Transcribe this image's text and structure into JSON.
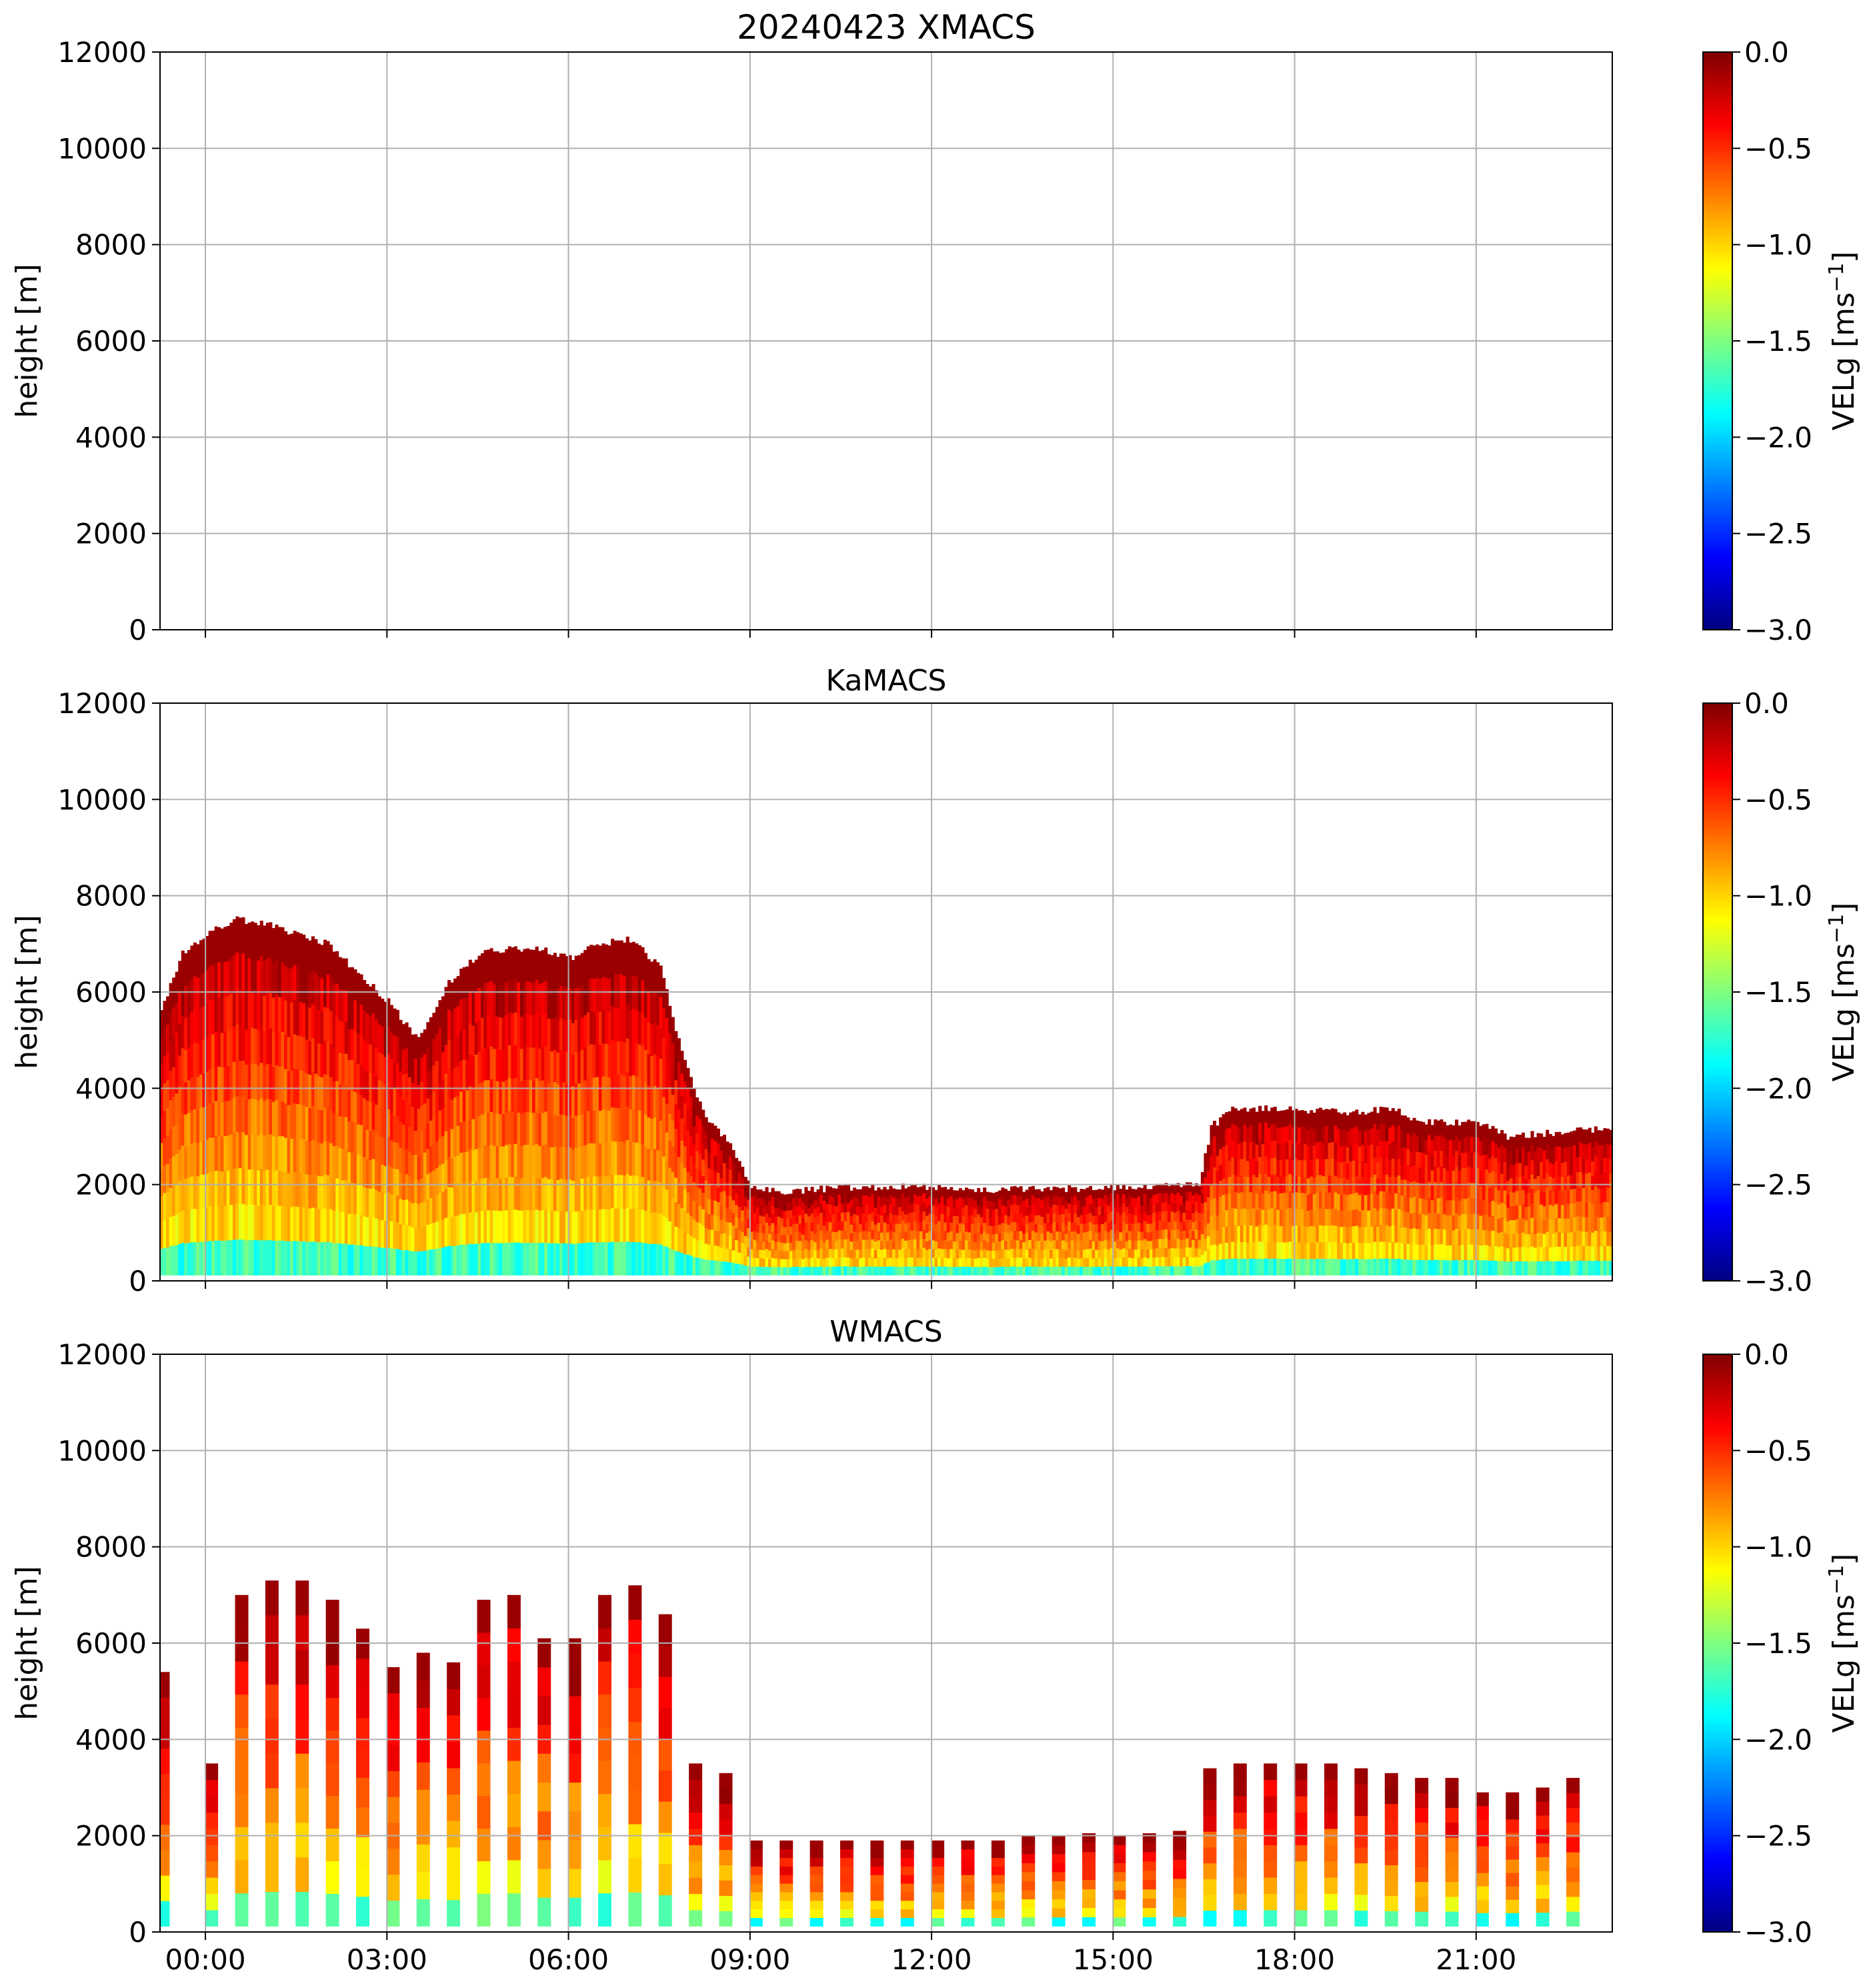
{
  "figure": {
    "title": "20240423 XMACS",
    "xticks": [
      "00:00",
      "03:00",
      "06:00",
      "09:00",
      "12:00",
      "15:00",
      "18:00",
      "21:00"
    ]
  },
  "colorbar": {
    "label_main": "VELg [ms",
    "label_sup": "−1",
    "label_end": "]",
    "range": [
      -3.0,
      0.0
    ],
    "ticks": [
      "0.0",
      "−0.5",
      "−1.0",
      "−1.5",
      "−2.0",
      "−2.5",
      "−3.0"
    ],
    "colormap": "jet",
    "stops": [
      "#00007f",
      "#0000ff",
      "#007fff",
      "#00ffff",
      "#7fff7f",
      "#ffff00",
      "#ff7f00",
      "#ff0000",
      "#7f0000"
    ]
  },
  "chart_data": [
    {
      "type": "heatmap",
      "title": "20240423 XMACS",
      "ylabel": "height [m]",
      "xlabel": "",
      "x_range_hours": [
        -0.75,
        23.25
      ],
      "ylim": [
        0,
        12000
      ],
      "yticks": [
        "0",
        "2000",
        "4000",
        "6000",
        "8000",
        "10000",
        "12000"
      ],
      "grid": true,
      "cloud_top_m": []
    },
    {
      "type": "heatmap",
      "title": "KaMACS",
      "ylabel": "height [m]",
      "xlabel": "",
      "x_range_hours": [
        -0.75,
        23.25
      ],
      "ylim": [
        0,
        12000
      ],
      "yticks": [
        "0",
        "2000",
        "4000",
        "6000",
        "8000",
        "10000",
        "12000"
      ],
      "grid": true,
      "cloud_top_m": [
        {
          "h": -0.75,
          "top": 5600
        },
        {
          "h": -0.4,
          "top": 6800
        },
        {
          "h": 0.0,
          "top": 7200
        },
        {
          "h": 0.5,
          "top": 7500
        },
        {
          "h": 1.0,
          "top": 7400
        },
        {
          "h": 1.5,
          "top": 7200
        },
        {
          "h": 2.0,
          "top": 7000
        },
        {
          "h": 2.5,
          "top": 6400
        },
        {
          "h": 3.0,
          "top": 5800
        },
        {
          "h": 3.5,
          "top": 5000
        },
        {
          "h": 4.0,
          "top": 6200
        },
        {
          "h": 4.5,
          "top": 6800
        },
        {
          "h": 5.0,
          "top": 6900
        },
        {
          "h": 5.5,
          "top": 6900
        },
        {
          "h": 6.0,
          "top": 6700
        },
        {
          "h": 6.5,
          "top": 7000
        },
        {
          "h": 7.0,
          "top": 7100
        },
        {
          "h": 7.5,
          "top": 6500
        },
        {
          "h": 7.8,
          "top": 5000
        },
        {
          "h": 8.2,
          "top": 3500
        },
        {
          "h": 8.6,
          "top": 2900
        },
        {
          "h": 9.0,
          "top": 2000
        },
        {
          "h": 9.5,
          "top": 1800
        },
        {
          "h": 10.0,
          "top": 1900
        },
        {
          "h": 11.0,
          "top": 1950
        },
        {
          "h": 12.0,
          "top": 1950
        },
        {
          "h": 13.0,
          "top": 1900
        },
        {
          "h": 14.0,
          "top": 1900
        },
        {
          "h": 15.0,
          "top": 1950
        },
        {
          "h": 16.0,
          "top": 2000
        },
        {
          "h": 16.4,
          "top": 2000
        },
        {
          "h": 16.6,
          "top": 3200
        },
        {
          "h": 17.0,
          "top": 3600
        },
        {
          "h": 18.0,
          "top": 3550
        },
        {
          "h": 19.0,
          "top": 3500
        },
        {
          "h": 19.6,
          "top": 3600
        },
        {
          "h": 20.0,
          "top": 3300
        },
        {
          "h": 21.0,
          "top": 3300
        },
        {
          "h": 21.5,
          "top": 3000
        },
        {
          "h": 22.5,
          "top": 3100
        },
        {
          "h": 23.25,
          "top": 3200
        }
      ]
    },
    {
      "type": "heatmap",
      "title": "WMACS",
      "ylabel": "height [m]",
      "xlabel": "",
      "x_range_hours": [
        -0.75,
        23.25
      ],
      "ylim": [
        0,
        12000
      ],
      "yticks": [
        "0",
        "2000",
        "4000",
        "6000",
        "8000",
        "10000",
        "12000"
      ],
      "grid": true,
      "column_width_hours": 0.22,
      "columns": [
        {
          "h": -0.7,
          "top": 5400
        },
        {
          "h": 0.1,
          "top": 3500
        },
        {
          "h": 0.6,
          "top": 7000
        },
        {
          "h": 1.1,
          "top": 7300
        },
        {
          "h": 1.6,
          "top": 7300
        },
        {
          "h": 2.1,
          "top": 6900
        },
        {
          "h": 2.6,
          "top": 6300
        },
        {
          "h": 3.1,
          "top": 5500
        },
        {
          "h": 3.6,
          "top": 5800
        },
        {
          "h": 4.1,
          "top": 5600
        },
        {
          "h": 4.6,
          "top": 6900
        },
        {
          "h": 5.1,
          "top": 7000
        },
        {
          "h": 5.6,
          "top": 6100
        },
        {
          "h": 6.1,
          "top": 6100
        },
        {
          "h": 6.6,
          "top": 7000
        },
        {
          "h": 7.1,
          "top": 7200
        },
        {
          "h": 7.6,
          "top": 6600
        },
        {
          "h": 8.1,
          "top": 3500
        },
        {
          "h": 8.6,
          "top": 3300
        },
        {
          "h": 9.1,
          "top": 1900
        },
        {
          "h": 9.6,
          "top": 1900
        },
        {
          "h": 10.1,
          "top": 1900
        },
        {
          "h": 10.6,
          "top": 1900
        },
        {
          "h": 11.1,
          "top": 1900
        },
        {
          "h": 11.6,
          "top": 1900
        },
        {
          "h": 12.1,
          "top": 1900
        },
        {
          "h": 12.6,
          "top": 1900
        },
        {
          "h": 13.1,
          "top": 1900
        },
        {
          "h": 13.6,
          "top": 2000
        },
        {
          "h": 14.1,
          "top": 2000
        },
        {
          "h": 14.6,
          "top": 2050
        },
        {
          "h": 15.1,
          "top": 2000
        },
        {
          "h": 15.6,
          "top": 2050
        },
        {
          "h": 16.1,
          "top": 2100
        },
        {
          "h": 16.6,
          "top": 3400
        },
        {
          "h": 17.1,
          "top": 3500
        },
        {
          "h": 17.6,
          "top": 3500
        },
        {
          "h": 18.1,
          "top": 3500
        },
        {
          "h": 18.6,
          "top": 3500
        },
        {
          "h": 19.1,
          "top": 3400
        },
        {
          "h": 19.6,
          "top": 3300
        },
        {
          "h": 20.1,
          "top": 3200
        },
        {
          "h": 20.6,
          "top": 3200
        },
        {
          "h": 21.1,
          "top": 2900
        },
        {
          "h": 21.6,
          "top": 2900
        },
        {
          "h": 22.1,
          "top": 3000
        },
        {
          "h": 22.6,
          "top": 3200
        }
      ]
    }
  ]
}
